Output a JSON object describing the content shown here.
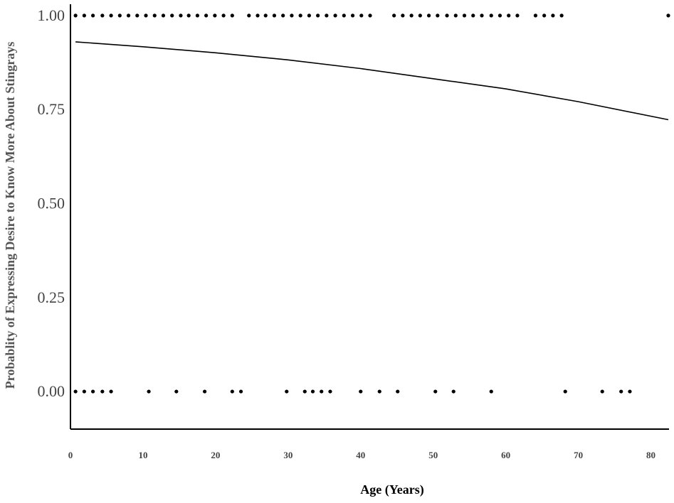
{
  "chart_data": {
    "type": "scatter",
    "xlabel": "Age (Years)",
    "ylabel": "Probablity of Expressing Desire to Know More About Stingrays",
    "xlim": [
      0,
      82.5
    ],
    "ylim": [
      -0.1,
      1.03
    ],
    "x_ticks": [
      "0",
      "10",
      "20",
      "30",
      "40",
      "50",
      "60",
      "70",
      "80"
    ],
    "y_ticks": [
      "0.00",
      "0.25",
      "0.50",
      "0.75",
      "1.00"
    ],
    "grid": false,
    "legend": "none",
    "points_y1": [
      0.7,
      1.9,
      3.1,
      4.4,
      5.6,
      6.8,
      8.0,
      9.2,
      10.4,
      11.6,
      12.8,
      14.0,
      15.2,
      16.3,
      17.5,
      18.7,
      19.9,
      21.1,
      22.3,
      24.6,
      25.8,
      26.9,
      28.1,
      29.3,
      30.5,
      31.7,
      32.9,
      34.1,
      35.3,
      36.5,
      37.7,
      38.9,
      40.1,
      41.3,
      44.6,
      45.8,
      47.0,
      48.2,
      49.4,
      50.6,
      51.9,
      53.1,
      54.3,
      55.5,
      56.7,
      58.0,
      59.2,
      60.4,
      61.6,
      64.1,
      65.3,
      66.5,
      67.7,
      82.4
    ],
    "points_y0": [
      0.7,
      1.9,
      3.1,
      4.4,
      5.6,
      10.8,
      14.6,
      18.5,
      22.3,
      23.5,
      29.8,
      32.3,
      33.4,
      34.6,
      35.8,
      40.0,
      42.6,
      45.1,
      50.3,
      52.8,
      58.0,
      68.2,
      73.3,
      75.9,
      77.1
    ],
    "fit_x": [
      0.7,
      10,
      20,
      30,
      40,
      50,
      60,
      70,
      82.4
    ],
    "fit_y": [
      0.93,
      0.917,
      0.901,
      0.882,
      0.859,
      0.832,
      0.805,
      0.771,
      0.723
    ]
  }
}
